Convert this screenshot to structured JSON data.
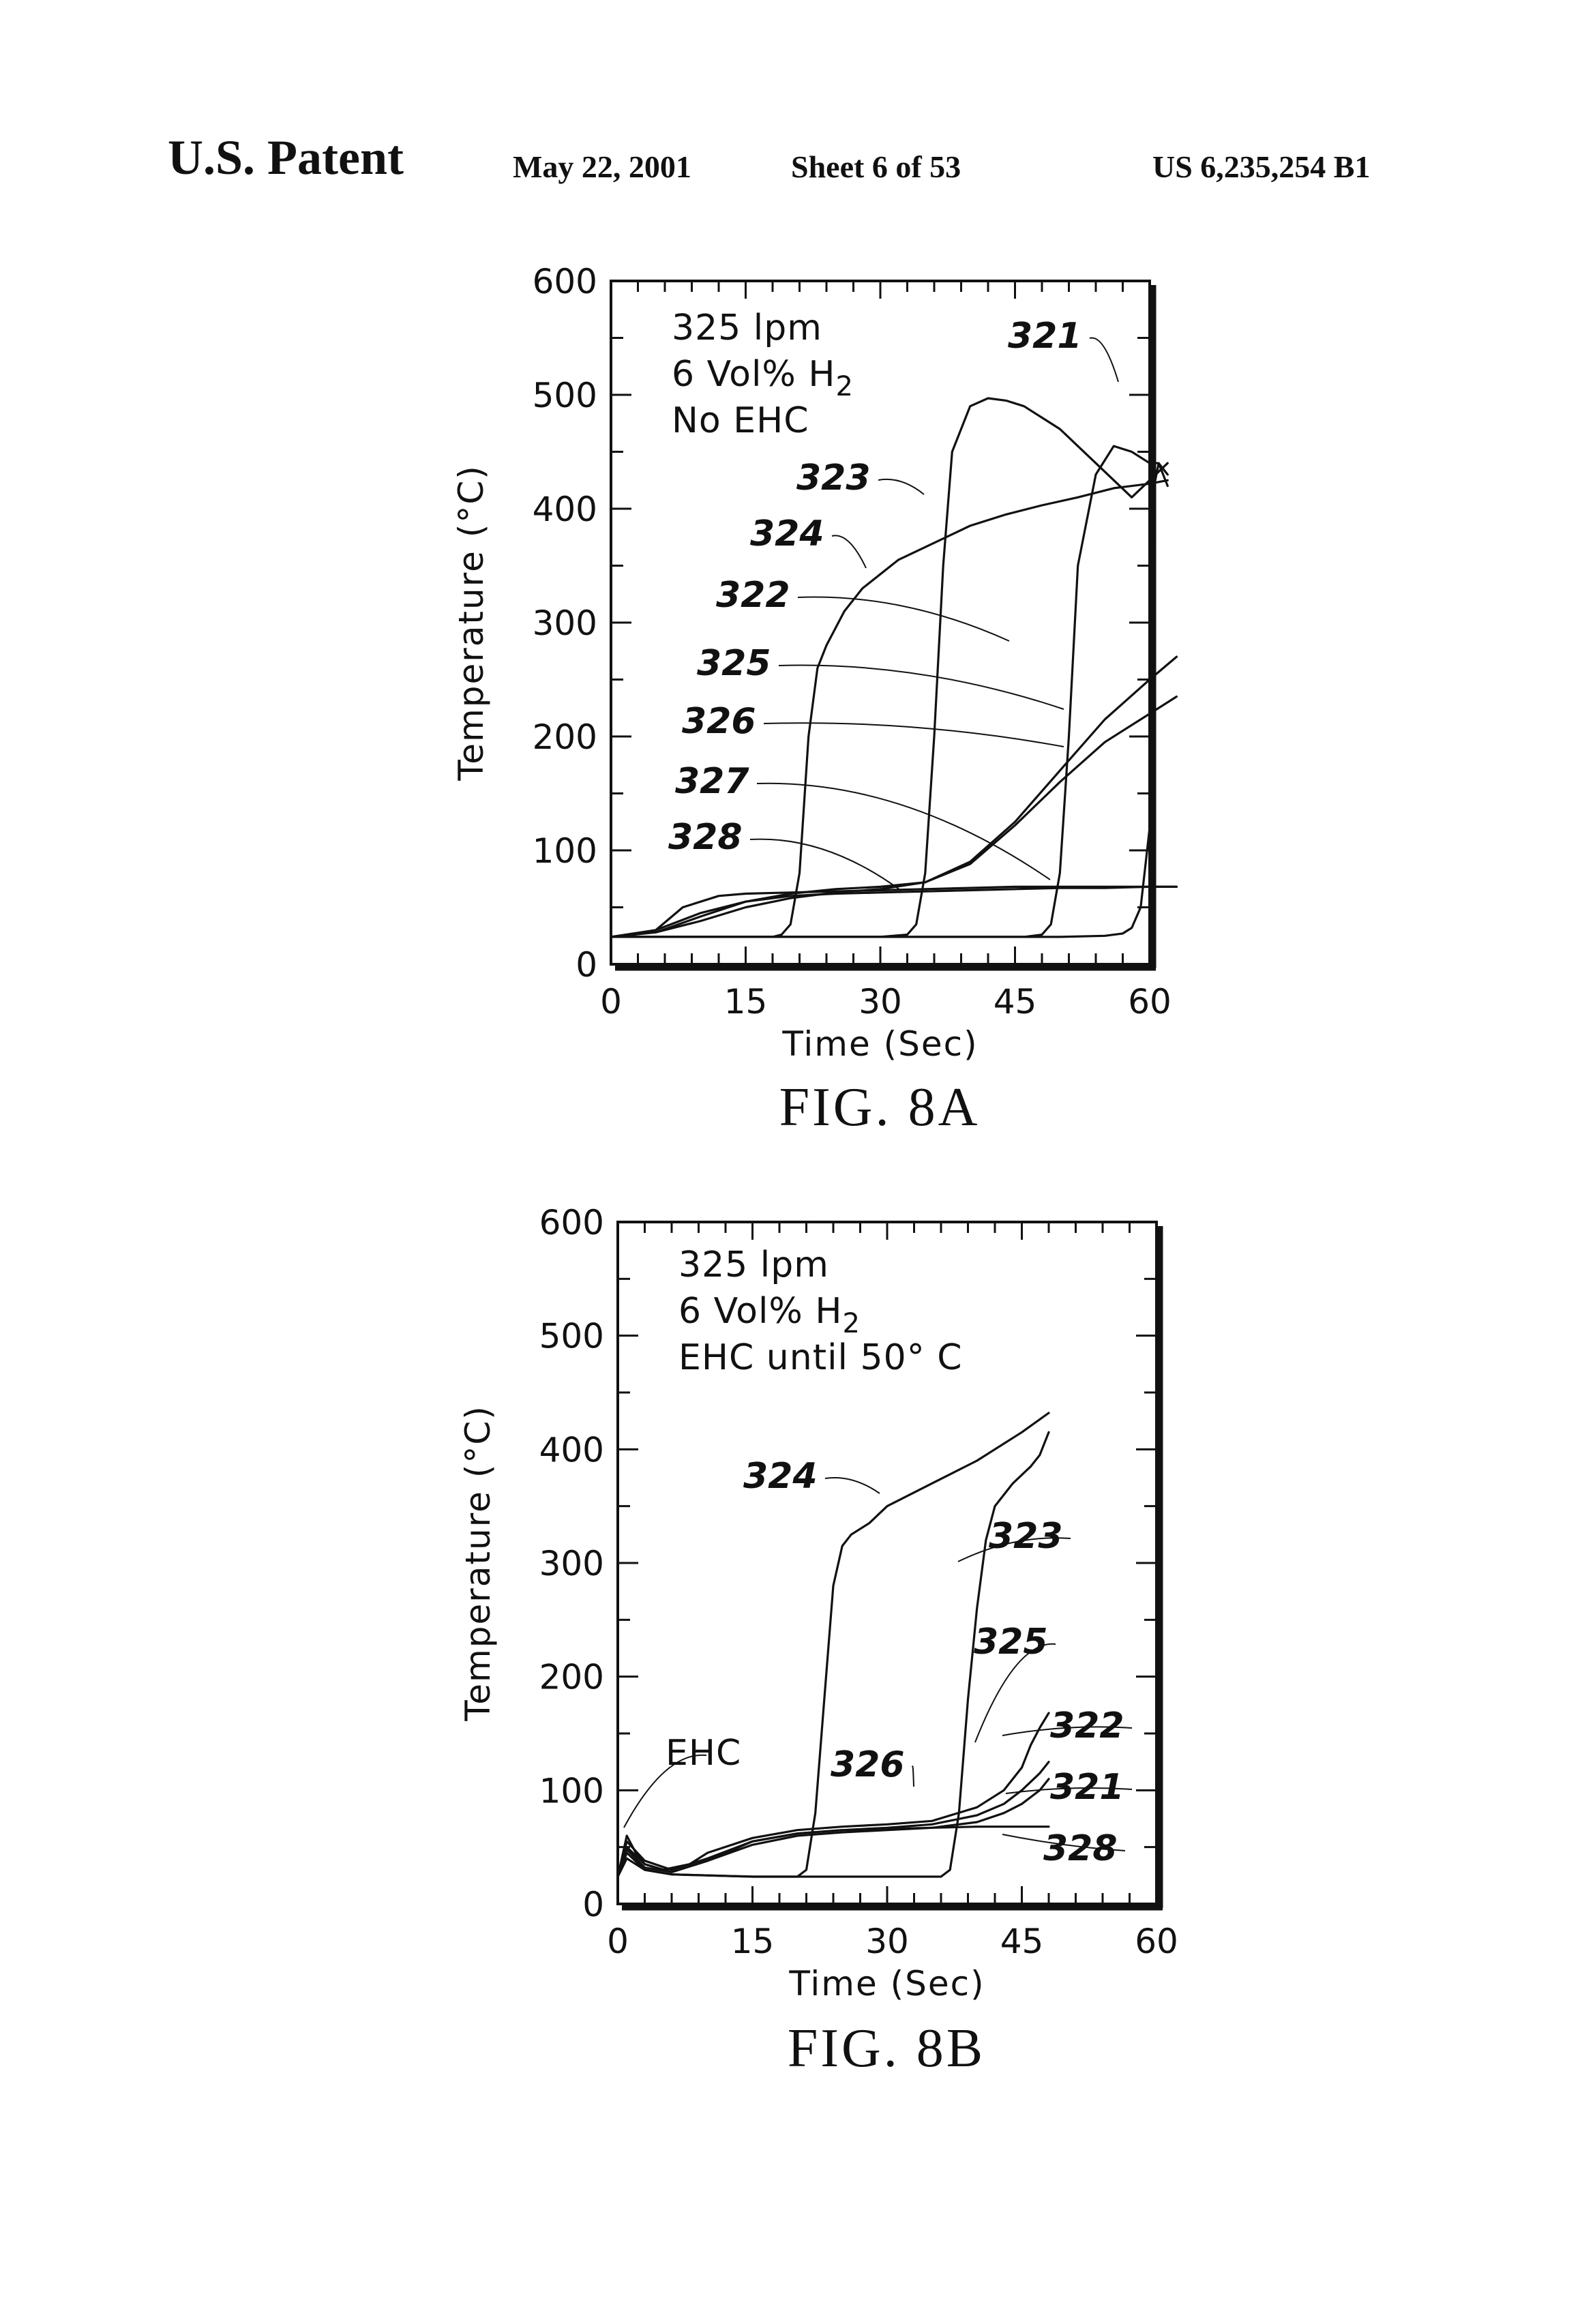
{
  "header": {
    "title": "U.S. Patent",
    "date": "May 22, 2001",
    "sheet": "Sheet 6 of 53",
    "patent_number": "US 6,235,254 B1"
  },
  "figures": [
    {
      "caption": "FIG. 8A",
      "notes": [
        "325 lpm",
        "6 Vol% H2",
        "No EHC"
      ],
      "curve_labels": [
        "321",
        "323",
        "324",
        "322",
        "325",
        "326",
        "327",
        "328"
      ]
    },
    {
      "caption": "FIG. 8B",
      "notes": [
        "325 lpm",
        "6 Vol% H2",
        "EHC until 50° C"
      ],
      "curve_labels": [
        "324",
        "323",
        "325",
        "322",
        "321",
        "328",
        "326",
        "EHC"
      ]
    }
  ],
  "chart_data": [
    {
      "type": "line",
      "xlabel": "Time (Sec)",
      "ylabel": "Temperature (°C)",
      "xlim": [
        0,
        60
      ],
      "ylim": [
        0,
        600
      ],
      "xticks": [
        0,
        15,
        30,
        45,
        60
      ],
      "yticks": [
        0,
        100,
        200,
        300,
        400,
        500,
        600
      ],
      "series": [
        {
          "name": "321",
          "x": [
            0,
            50,
            55,
            57,
            58,
            59,
            60,
            60.5,
            61,
            62
          ],
          "y": [
            24,
            24,
            25,
            27,
            32,
            50,
            120,
            420,
            440,
            430
          ]
        },
        {
          "name": "322",
          "x": [
            0,
            40,
            46,
            48,
            49,
            50,
            51,
            52,
            54,
            56,
            58,
            60,
            61,
            62
          ],
          "y": [
            24,
            24,
            24,
            26,
            35,
            80,
            200,
            350,
            430,
            455,
            450,
            440,
            440,
            420
          ]
        },
        {
          "name": "323",
          "x": [
            0,
            30,
            33,
            34,
            35,
            36,
            37,
            38,
            40,
            42,
            44,
            46,
            48,
            50,
            54,
            58,
            62
          ],
          "y": [
            24,
            24,
            26,
            35,
            80,
            200,
            350,
            450,
            490,
            497,
            495,
            490,
            480,
            470,
            440,
            410,
            440
          ]
        },
        {
          "name": "324",
          "x": [
            0,
            18,
            19,
            20,
            21,
            22,
            23,
            24,
            26,
            28,
            32,
            36,
            40,
            44,
            48,
            52,
            56,
            60,
            62
          ],
          "y": [
            24,
            24,
            26,
            35,
            80,
            200,
            260,
            280,
            310,
            330,
            355,
            370,
            385,
            395,
            403,
            410,
            418,
            422,
            425
          ]
        },
        {
          "name": "325",
          "x": [
            0,
            5,
            10,
            15,
            20,
            25,
            30,
            35,
            40,
            45,
            50,
            55,
            60,
            63
          ],
          "y": [
            24,
            28,
            38,
            50,
            58,
            63,
            66,
            72,
            90,
            125,
            170,
            215,
            250,
            270
          ]
        },
        {
          "name": "326",
          "x": [
            0,
            5,
            10,
            15,
            20,
            25,
            30,
            35,
            40,
            45,
            50,
            55,
            60,
            63
          ],
          "y": [
            24,
            28,
            42,
            55,
            62,
            66,
            68,
            72,
            88,
            122,
            160,
            195,
            220,
            235
          ]
        },
        {
          "name": "327",
          "x": [
            0,
            5,
            8,
            12,
            15,
            20,
            25,
            30,
            35,
            40,
            45,
            50,
            55,
            60,
            63
          ],
          "y": [
            24,
            30,
            50,
            60,
            62,
            63,
            64,
            65,
            66,
            67,
            68,
            68,
            68,
            68,
            68
          ]
        },
        {
          "name": "328",
          "x": [
            0,
            5,
            10,
            15,
            20,
            25,
            30,
            35,
            40,
            45,
            50,
            55,
            60,
            63
          ],
          "y": [
            24,
            30,
            45,
            55,
            60,
            62,
            63,
            64,
            65,
            66,
            67,
            67,
            68,
            68
          ]
        }
      ]
    },
    {
      "type": "line",
      "xlabel": "Time (Sec)",
      "ylabel": "Temperature (°C)",
      "xlim": [
        0,
        60
      ],
      "ylim": [
        0,
        600
      ],
      "xticks": [
        0,
        15,
        30,
        45,
        60
      ],
      "yticks": [
        0,
        100,
        200,
        300,
        400,
        500,
        600
      ],
      "series": [
        {
          "name": "324",
          "x": [
            0,
            1,
            3,
            6,
            15,
            20,
            21,
            22,
            23,
            24,
            25,
            26,
            28,
            30,
            35,
            40,
            45,
            48
          ],
          "y": [
            24,
            40,
            30,
            26,
            24,
            24,
            30,
            80,
            180,
            280,
            315,
            325,
            335,
            350,
            370,
            390,
            415,
            432
          ]
        },
        {
          "name": "323",
          "x": [
            0,
            1,
            3,
            6,
            15,
            30,
            36,
            37,
            38,
            39,
            40,
            41,
            42,
            44,
            46,
            47,
            48
          ],
          "y": [
            24,
            45,
            30,
            26,
            24,
            24,
            24,
            30,
            80,
            180,
            260,
            320,
            350,
            370,
            385,
            395,
            415
          ]
        },
        {
          "name": "325",
          "x": [
            0,
            1,
            2,
            3,
            5,
            8,
            10,
            15,
            20,
            25,
            30,
            35,
            40,
            43,
            45,
            46,
            47,
            48
          ],
          "y": [
            24,
            60,
            45,
            35,
            30,
            35,
            45,
            58,
            65,
            68,
            70,
            73,
            85,
            100,
            120,
            140,
            155,
            168
          ]
        },
        {
          "name": "322",
          "x": [
            0,
            1,
            3,
            6,
            10,
            15,
            20,
            25,
            30,
            35,
            40,
            43,
            45,
            47,
            48
          ],
          "y": [
            24,
            55,
            38,
            30,
            40,
            55,
            62,
            65,
            67,
            70,
            78,
            88,
            100,
            115,
            125
          ]
        },
        {
          "name": "321",
          "x": [
            0,
            1,
            3,
            6,
            10,
            15,
            20,
            25,
            30,
            35,
            40,
            43,
            45,
            47,
            48
          ],
          "y": [
            24,
            50,
            35,
            28,
            38,
            52,
            60,
            63,
            65,
            67,
            72,
            80,
            88,
            100,
            110
          ]
        },
        {
          "name": "328",
          "x": [
            0,
            1,
            3,
            6,
            10,
            15,
            20,
            25,
            30,
            35,
            40,
            45,
            48
          ],
          "y": [
            24,
            48,
            32,
            28,
            38,
            55,
            62,
            65,
            66,
            67,
            68,
            68,
            68
          ]
        }
      ]
    }
  ]
}
